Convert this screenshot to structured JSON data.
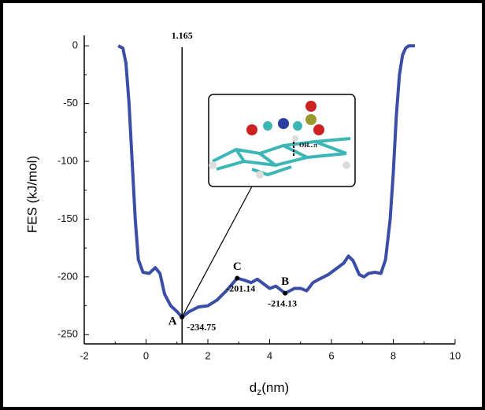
{
  "chart_data": {
    "type": "line",
    "y_label": "FES (kJ/mol)",
    "x_label": {
      "main": "d",
      "sub": "z",
      "unit": "(nm)"
    },
    "x": [
      -0.9,
      -0.75,
      -0.65,
      -0.55,
      -0.45,
      -0.35,
      -0.25,
      -0.1,
      0.1,
      0.3,
      0.45,
      0.6,
      0.8,
      1.0,
      1.165,
      1.4,
      1.7,
      2.0,
      2.3,
      2.6,
      2.95,
      3.2,
      3.4,
      3.6,
      3.8,
      4.0,
      4.2,
      4.5,
      4.8,
      5.0,
      5.2,
      5.4,
      5.6,
      5.9,
      6.2,
      6.4,
      6.55,
      6.7,
      6.9,
      7.05,
      7.2,
      7.4,
      7.6,
      7.75,
      7.9,
      8.0,
      8.1,
      8.2,
      8.3,
      8.4,
      8.5,
      8.7
    ],
    "series": [
      {
        "color": "#3b4ea6",
        "values": [
          0,
          -2,
          -15,
          -50,
          -100,
          -150,
          -185,
          -196,
          -197,
          -192,
          -197,
          -215,
          -225,
          -230,
          -234.75,
          -230,
          -226,
          -225,
          -220,
          -212,
          -201.14,
          -203,
          -205,
          -202,
          -206,
          -210,
          -208,
          -214.13,
          -210,
          -210,
          -212,
          -205,
          -202,
          -198,
          -192,
          -188,
          -182,
          -186,
          -198,
          -200,
          -197,
          -196,
          -197,
          -185,
          -150,
          -110,
          -60,
          -25,
          -8,
          -2,
          0,
          0
        ]
      }
    ],
    "xlim": [
      -2,
      10
    ],
    "xticks": [
      -2,
      0,
      2,
      4,
      6,
      8,
      10
    ],
    "ylim": [
      -258,
      9
    ],
    "yticks": [
      0,
      -50,
      -100,
      -150,
      -200,
      -250
    ],
    "vline": 1.165,
    "markers": [
      {
        "label": "A",
        "x": 1.165,
        "y": -234.75
      },
      {
        "label": "C",
        "x": 2.95,
        "y": -201.14
      },
      {
        "label": "B",
        "x": 4.5,
        "y": -214.13
      }
    ],
    "inset_label": "OH...π"
  }
}
